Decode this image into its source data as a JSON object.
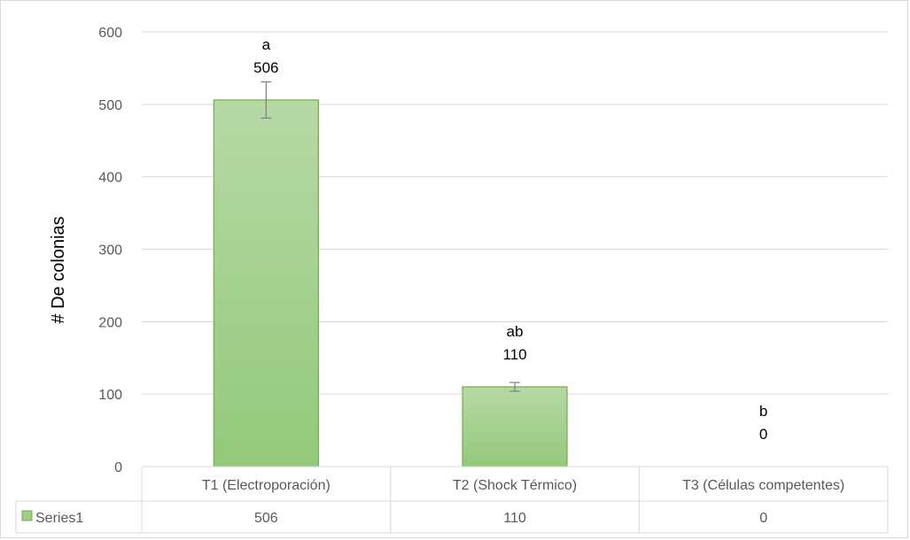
{
  "chart_data": {
    "type": "bar",
    "ylabel": "# De colonias",
    "ylim": [
      0,
      600
    ],
    "yticks": [
      0,
      100,
      200,
      300,
      400,
      500,
      600
    ],
    "grid": true,
    "categories": [
      "T1 (Electroporación)",
      "T2 (Shock Térmico)",
      "T3 (Células competentes)"
    ],
    "series": [
      {
        "name": "Series1",
        "values": [
          506,
          110,
          0
        ],
        "error": [
          25,
          6,
          0
        ],
        "significance": [
          "a",
          "ab",
          "b"
        ],
        "color": "#9fcd8a",
        "border_color": "#70ad47"
      }
    ],
    "data_table": true,
    "legend_key_in_table": true
  }
}
